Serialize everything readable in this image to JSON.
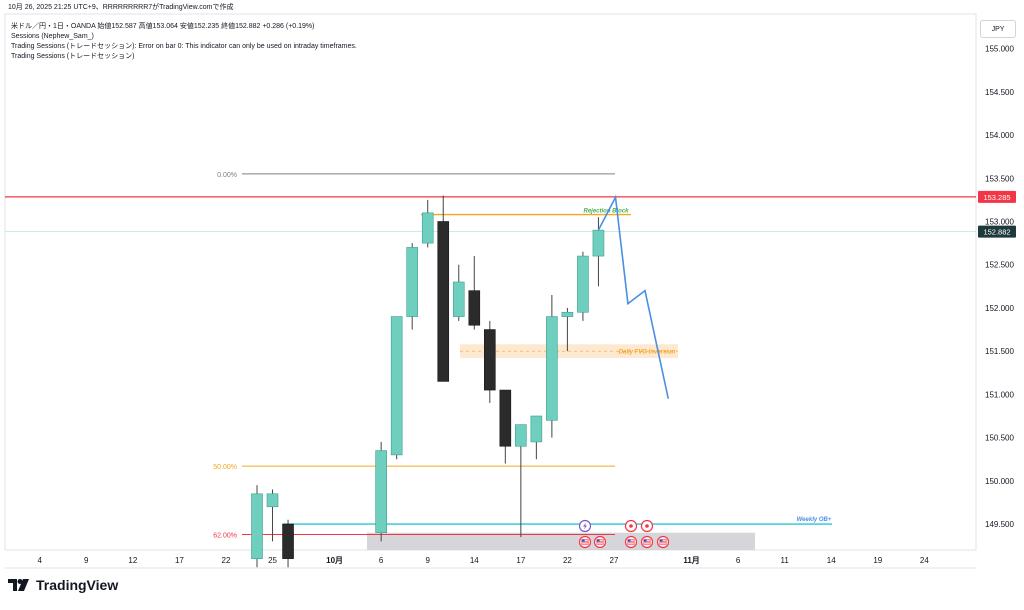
{
  "header": {
    "text": "10月 26, 2025 21:25 UTC+9、RRRRRRRRR7がTradingView.comで作成"
  },
  "legend": {
    "symbol_line": "米ドル／円・1日・OANDA  始値152.587  高値153.064  安値152.235  終値152.882  +0.286 (+0.19%)",
    "indicator1": "Sessions (Nephew_Sam_)",
    "indicator2": "Trading Sessions (トレードセッション): Error on bar 0: This indicator can only be used on intraday timeframes.",
    "indicator3": "Trading Sessions (トレードセッション)"
  },
  "currency": "JPY",
  "brand": {
    "name": "TradingView"
  },
  "colors": {
    "bull": "#6fcfbf",
    "bear": "#2b2b2b",
    "wick": "#444444",
    "red_line": "#f23645",
    "fib_orange": "#f5a623",
    "fib_gray": "#808080",
    "fib_red": "#f23645",
    "cyan": "#26c6da",
    "projection": "#4a90e2",
    "fvg": "#fde9d2",
    "fvg_text": "#f5a623",
    "rb_text": "#4caf50",
    "gray_box": "#cfcfd3"
  },
  "chart_data": {
    "type": "candlestick",
    "symbol": "USDJPY",
    "timeframe": "1D",
    "ylim": [
      149.2,
      155.4
    ],
    "y_ticks": [
      "155.000",
      "154.500",
      "154.000",
      "153.500",
      "153.000",
      "152.500",
      "152.000",
      "151.500",
      "151.000",
      "150.500",
      "150.000",
      "149.500"
    ],
    "x_labels": [
      {
        "label": "4",
        "i": -14
      },
      {
        "label": "9",
        "i": -11
      },
      {
        "label": "12",
        "i": -8
      },
      {
        "label": "17",
        "i": -5
      },
      {
        "label": "22",
        "i": -2
      },
      {
        "label": "25",
        "i": 1
      },
      {
        "label": "10月",
        "i": 5
      },
      {
        "label": "6",
        "i": 8
      },
      {
        "label": "9",
        "i": 11
      },
      {
        "label": "14",
        "i": 14
      },
      {
        "label": "17",
        "i": 17
      },
      {
        "label": "22",
        "i": 20
      },
      {
        "label": "27",
        "i": 23
      },
      {
        "label": "11月",
        "i": 28
      },
      {
        "label": "6",
        "i": 31
      },
      {
        "label": "11",
        "i": 34
      },
      {
        "label": "14",
        "i": 37
      },
      {
        "label": "19",
        "i": 40
      },
      {
        "label": "24",
        "i": 43
      }
    ],
    "candles": [
      {
        "i": 0,
        "o": 149.1,
        "h": 149.95,
        "l": 149.0,
        "c": 149.85
      },
      {
        "i": 1,
        "o": 149.7,
        "h": 149.9,
        "l": 149.3,
        "c": 149.85
      },
      {
        "i": 2,
        "o": 149.5,
        "h": 149.55,
        "l": 149.0,
        "c": 149.1
      },
      {
        "i": 8,
        "o": 149.4,
        "h": 150.45,
        "l": 149.3,
        "c": 150.35
      },
      {
        "i": 9,
        "o": 150.3,
        "h": 151.9,
        "l": 150.25,
        "c": 151.9
      },
      {
        "i": 10,
        "o": 151.9,
        "h": 152.75,
        "l": 151.75,
        "c": 152.7
      },
      {
        "i": 11,
        "o": 152.75,
        "h": 153.25,
        "l": 152.7,
        "c": 153.1
      },
      {
        "i": 12,
        "o": 153.0,
        "h": 153.3,
        "l": 151.15,
        "c": 151.15
      },
      {
        "i": 13,
        "o": 151.9,
        "h": 152.5,
        "l": 151.85,
        "c": 152.3
      },
      {
        "i": 14,
        "o": 152.2,
        "h": 152.6,
        "l": 151.75,
        "c": 151.8
      },
      {
        "i": 15,
        "o": 151.75,
        "h": 151.85,
        "l": 150.9,
        "c": 151.05
      },
      {
        "i": 16,
        "o": 151.05,
        "h": 151.05,
        "l": 150.2,
        "c": 150.4
      },
      {
        "i": 17,
        "o": 150.4,
        "h": 150.65,
        "l": 149.35,
        "c": 150.65
      },
      {
        "i": 18,
        "o": 150.45,
        "h": 150.75,
        "l": 150.25,
        "c": 150.75
      },
      {
        "i": 19,
        "o": 150.7,
        "h": 152.15,
        "l": 150.5,
        "c": 151.9
      },
      {
        "i": 20,
        "o": 151.9,
        "h": 152.0,
        "l": 151.5,
        "c": 151.95
      },
      {
        "i": 21,
        "o": 151.95,
        "h": 152.65,
        "l": 151.85,
        "c": 152.6
      },
      {
        "i": 22,
        "o": 152.6,
        "h": 153.05,
        "l": 152.25,
        "c": 152.9
      }
    ],
    "current_price": {
      "value": 152.882,
      "label": "152.882"
    },
    "red_level": {
      "value": 153.285,
      "label": "153.285"
    },
    "fib_levels": [
      {
        "label": "0.00%",
        "value": 153.55,
        "color": "#808080"
      },
      {
        "label": "50.00%",
        "value": 150.17,
        "color": "#f5a623"
      },
      {
        "label": "62.00%",
        "value": 149.38,
        "color": "#f23645"
      }
    ],
    "rejection_block": {
      "label": "Rejection Block",
      "value": 153.08
    },
    "fvg": {
      "label": "Daily FVG Inversion",
      "top": 151.58,
      "bottom": 151.42
    },
    "weekly_ob": {
      "label": "Weekly OB+",
      "value": 149.5
    },
    "projection": [
      {
        "i": 22,
        "v": 152.9
      },
      {
        "i": 23.1,
        "v": 153.28
      },
      {
        "i": 23.9,
        "v": 152.05
      },
      {
        "i": 25.0,
        "v": 152.2
      },
      {
        "i": 26.5,
        "v": 150.95
      }
    ]
  }
}
